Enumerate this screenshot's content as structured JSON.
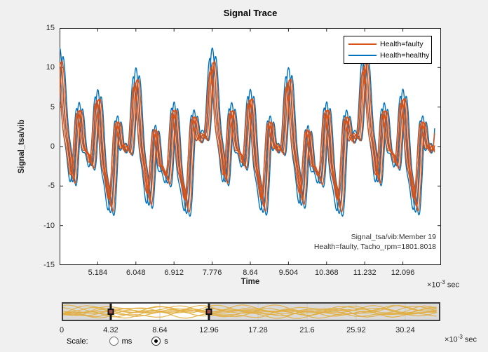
{
  "figure": {
    "bg": "#F0F0F0",
    "axes_bg": "#FFFFFF",
    "axis_color": "#262626"
  },
  "chart": {
    "title": "Signal Trace",
    "xlabel": "Time",
    "ylabel": "Signal_tsa/vib"
  },
  "time_multiplier": {
    "prefix": "×10",
    "exponent": "-3",
    "unit": "sec"
  },
  "chart_data": {
    "type": "line",
    "title": "Signal Trace",
    "xlabel": "Time",
    "ylabel": "Signal_tsa/vib",
    "x_unit": "×10⁻³ sec",
    "xlim_ms": [
      4.32,
      12.96
    ],
    "ylim": [
      -15,
      15
    ],
    "x_ticks": [
      5.184,
      6.048,
      6.912,
      7.776,
      8.64,
      9.504,
      10.368,
      11.232,
      12.096
    ],
    "y_ticks": [
      15,
      10,
      5,
      0,
      -5,
      -10,
      -15
    ],
    "grid": false,
    "legend_position": "northeast",
    "annotation": [
      "Signal_tsa/vib:Member 19",
      "Health=faulty, Tacho_rpm=1801.8018"
    ],
    "data_end_ms": 12.82,
    "synthesis_components": [
      {
        "f": 2.315,
        "a": 4.1,
        "p": 0.9
      },
      {
        "f": 1.157,
        "a": 2.7,
        "p": 2.1
      },
      {
        "f": 0.579,
        "a": 2.1,
        "p": 4.6
      },
      {
        "f": 4.63,
        "a": 1.5,
        "p": 1.1
      },
      {
        "f": 0.289,
        "a": 1.3,
        "p": 5.7
      }
    ],
    "series": [
      {
        "name": "Health=healthy",
        "color": "#0072BD",
        "members": [
          {
            "dt": -0.055,
            "gain": 1.1,
            "dy": -0.3
          },
          {
            "dt": 0.02,
            "gain": 1.14,
            "dy": 0.35
          },
          {
            "dt": 0.075,
            "gain": 1.05,
            "dy": 0.0
          }
        ]
      },
      {
        "name": "Health=faulty",
        "color": "#D95319",
        "members": [
          {
            "dt": 0.0,
            "gain": 1.0,
            "dy": 0.0
          },
          {
            "dt": 0.04,
            "gain": 0.92,
            "dy": 0.3
          },
          {
            "dt": -0.035,
            "gain": 1.04,
            "dy": -0.25
          },
          {
            "dt": 0.07,
            "gain": 0.88,
            "dy": 0.15
          }
        ]
      }
    ]
  },
  "legend": {
    "items": [
      {
        "label": "Health=faulty",
        "color": "#D95319"
      },
      {
        "label": "Health=healthy",
        "color": "#0072BD"
      }
    ]
  },
  "panner": {
    "xlim_ms": [
      0,
      33.33
    ],
    "ticks": [
      0,
      4.32,
      8.64,
      12.96,
      17.28,
      21.6,
      25.92,
      30.24
    ],
    "selection_ms": [
      4.32,
      12.96
    ],
    "trace_color": "#E0AE3F",
    "bg_outside": "#DBDBDB",
    "bg_selection": "#FFFFFF",
    "handle_color": "#151515",
    "handle_dot_color": "#A0524A",
    "amps": [
      4.6,
      3.0,
      2.3
    ],
    "freqs": [
      0.33,
      0.82,
      1.57
    ],
    "member_phases": [
      [
        0.2,
        1.4,
        4.1
      ],
      [
        0.9,
        3.3,
        0.6
      ],
      [
        1.7,
        5.2,
        2.9
      ],
      [
        2.6,
        0.8,
        5.5
      ],
      [
        3.4,
        2.5,
        1.8
      ],
      [
        4.3,
        4.7,
        3.7
      ],
      [
        5.1,
        1.9,
        0.2
      ],
      [
        5.9,
        3.9,
        5.0
      ],
      [
        0.6,
        5.8,
        2.2
      ],
      [
        2.1,
        2.8,
        4.4
      ]
    ]
  },
  "scale_control": {
    "label": "Scale:",
    "options": [
      {
        "label": "ms",
        "selected": false
      },
      {
        "label": "s",
        "selected": true
      }
    ]
  }
}
